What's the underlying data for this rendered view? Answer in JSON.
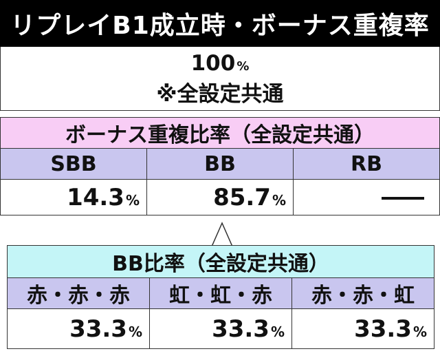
{
  "title": "リプレイB1成立時・ボーナス重複率",
  "rate": {
    "value": "100",
    "unit": "%",
    "note": "※全設定共通"
  },
  "ratio_table": {
    "caption": "ボーナス重複比率（全設定共通）",
    "columns": [
      {
        "label": "SBB",
        "value": "14.3",
        "unit": "%"
      },
      {
        "label": "BB",
        "value": "85.7",
        "unit": "%"
      },
      {
        "label": "RB",
        "value": "—",
        "unit": ""
      }
    ]
  },
  "bb_table": {
    "caption": "BB比率（全設定共通）",
    "columns": [
      {
        "label": "赤・赤・赤",
        "value": "33.3",
        "unit": "%"
      },
      {
        "label": "虹・虹・赤",
        "value": "33.3",
        "unit": "%"
      },
      {
        "label": "赤・赤・虹",
        "value": "33.3",
        "unit": "%"
      }
    ]
  },
  "colors": {
    "title_bg": "#000000",
    "pink_caption": "#f8cdf5",
    "lavender_header": "#c9c6ef",
    "cyan_caption": "#c4f5f7"
  }
}
